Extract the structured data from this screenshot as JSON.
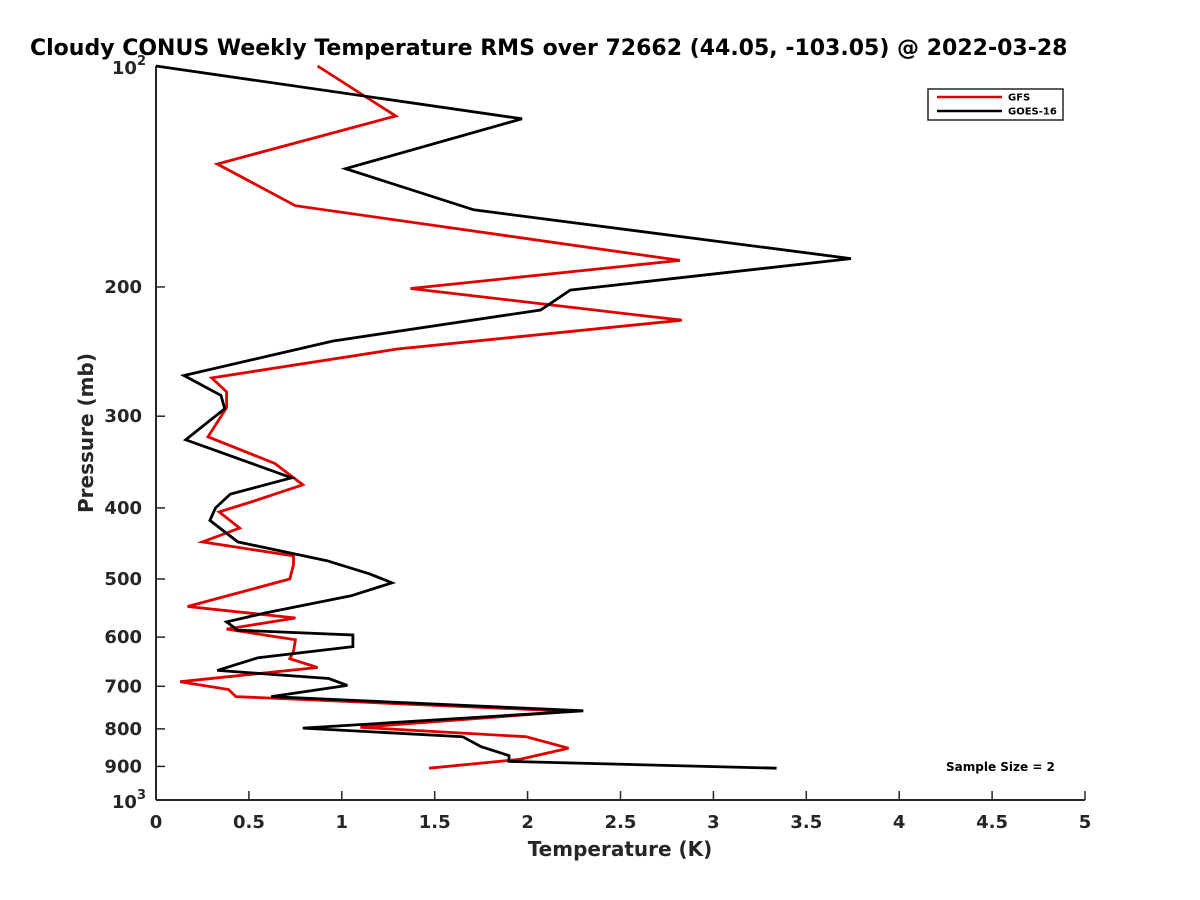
{
  "chart_data": {
    "type": "line",
    "title": "Cloudy CONUS Weekly Temperature RMS over 72662 (44.05, -103.05) @ 2022-03-28",
    "xlabel": "Temperature (K)",
    "ylabel": "Pressure (mb)",
    "xlim": [
      0,
      5
    ],
    "ylim": [
      100,
      1000
    ],
    "y_scale": "log",
    "y_reversed": true,
    "x_ticks": [
      0,
      0.5,
      1,
      1.5,
      2,
      2.5,
      3,
      3.5,
      4,
      4.5,
      5
    ],
    "x_tick_labels": [
      "0",
      "0.5",
      "1",
      "1.5",
      "2",
      "2.5",
      "3",
      "3.5",
      "4",
      "4.5",
      "5"
    ],
    "y_ticks": [
      200,
      300,
      400,
      500,
      600,
      700,
      800,
      900
    ],
    "y_tick_labels": [
      "200",
      "300",
      "400",
      "500",
      "600",
      "700",
      "800",
      "900"
    ],
    "y_end_labels": {
      "top": {
        "value": 100,
        "base": "10",
        "exp": "2"
      },
      "bottom": {
        "value": 1000,
        "base": "10",
        "exp": "3"
      }
    },
    "grid": false,
    "legend_position": "top-right",
    "annotation": "Sample Size = 2",
    "series": [
      {
        "name": "GFS",
        "color": "#e00000",
        "points": [
          [
            0.87,
            100
          ],
          [
            1.29,
            117
          ],
          [
            0.33,
            136
          ],
          [
            0.75,
            155
          ],
          [
            2.82,
            184
          ],
          [
            1.37,
            201
          ],
          [
            2.83,
            222
          ],
          [
            1.3,
            243
          ],
          [
            0.3,
            266
          ],
          [
            0.38,
            278
          ],
          [
            0.38,
            292
          ],
          [
            0.28,
            320
          ],
          [
            0.64,
            348
          ],
          [
            0.79,
            372
          ],
          [
            0.52,
            392
          ],
          [
            0.34,
            405
          ],
          [
            0.45,
            426
          ],
          [
            0.25,
            445
          ],
          [
            0.74,
            465
          ],
          [
            0.74,
            478
          ],
          [
            0.72,
            500
          ],
          [
            0.17,
            545
          ],
          [
            0.75,
            565
          ],
          [
            0.38,
            585
          ],
          [
            0.75,
            605
          ],
          [
            0.74,
            628
          ],
          [
            0.72,
            642
          ],
          [
            0.87,
            660
          ],
          [
            0.13,
            690
          ],
          [
            0.39,
            707
          ],
          [
            0.43,
            723
          ],
          [
            2.24,
            757
          ],
          [
            1.1,
            796
          ],
          [
            1.99,
            820
          ],
          [
            2.22,
            850
          ],
          [
            1.96,
            880
          ],
          [
            1.47,
            905
          ]
        ]
      },
      {
        "name": "GOES-16",
        "color": "#000000",
        "points": [
          [
            0.0,
            100
          ],
          [
            1.97,
            118
          ],
          [
            1.02,
            138
          ],
          [
            1.71,
            157
          ],
          [
            3.74,
            183
          ],
          [
            2.23,
            202
          ],
          [
            2.07,
            215
          ],
          [
            0.95,
            237
          ],
          [
            0.15,
            264
          ],
          [
            0.35,
            281
          ],
          [
            0.37,
            293
          ],
          [
            0.16,
            323
          ],
          [
            0.73,
            364
          ],
          [
            0.4,
            383
          ],
          [
            0.32,
            400
          ],
          [
            0.29,
            416
          ],
          [
            0.44,
            445
          ],
          [
            0.92,
            472
          ],
          [
            1.15,
            492
          ],
          [
            1.27,
            506
          ],
          [
            1.05,
            527
          ],
          [
            0.59,
            556
          ],
          [
            0.38,
            572
          ],
          [
            0.44,
            587
          ],
          [
            1.06,
            596
          ],
          [
            1.06,
            618
          ],
          [
            0.55,
            640
          ],
          [
            0.33,
            666
          ],
          [
            0.93,
            683
          ],
          [
            1.03,
            698
          ],
          [
            0.62,
            723
          ],
          [
            2.3,
            756
          ],
          [
            0.79,
            798
          ],
          [
            1.65,
            820
          ],
          [
            1.75,
            846
          ],
          [
            1.9,
            870
          ],
          [
            1.9,
            886
          ],
          [
            3.34,
            905
          ]
        ]
      }
    ]
  }
}
